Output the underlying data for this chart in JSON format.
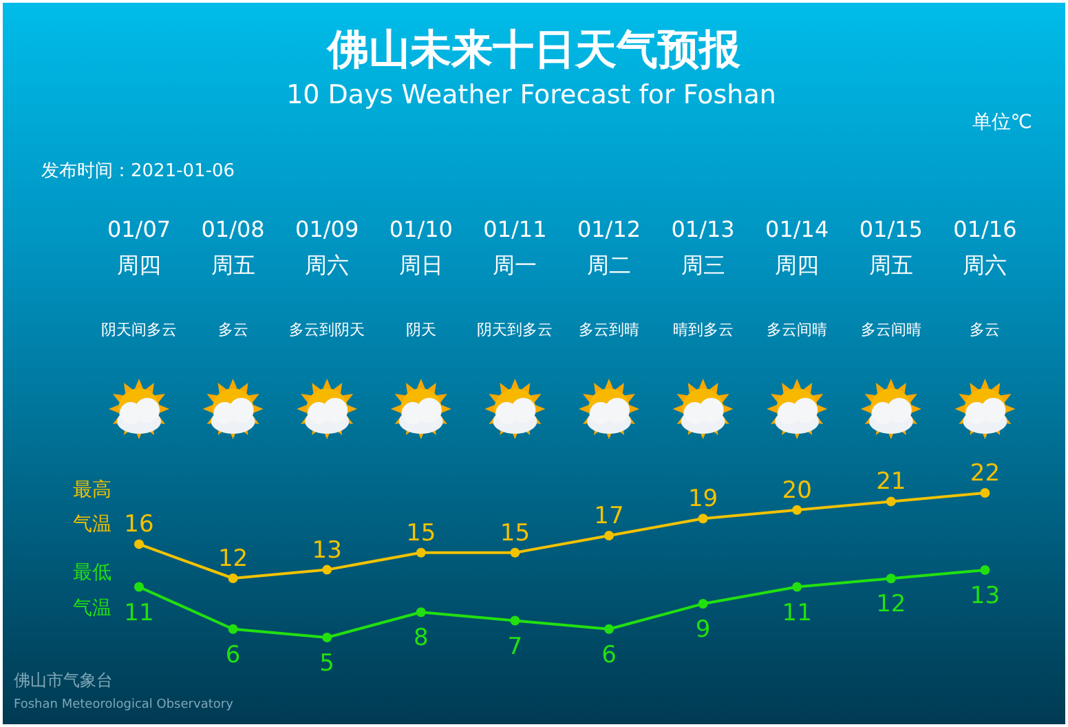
{
  "chart_data": {
    "type": "line",
    "title": "佛山未来十日天气预报",
    "subtitle": "10 Days Weather Forecast for Foshan",
    "categories": [
      "01/07周四阴天间多云",
      "01/08周五多云",
      "01/09周六多云到阴天",
      "01/10周日阴天",
      "01/11周一阴天到多云",
      "01/12周二多云到晴",
      "01/13周三晴到多云",
      "01/14周四多云间晴",
      "01/15周五多云间晴",
      "01/16周六多云"
    ],
    "series": [
      {
        "name": "最高气温",
        "color": "#f2c200",
        "values": [
          16,
          12,
          13,
          15,
          15,
          17,
          19,
          20,
          21,
          22
        ]
      },
      {
        "name": "最低气温",
        "color": "#22e010",
        "values": [
          11,
          6,
          5,
          8,
          7,
          6,
          9,
          11,
          12,
          13
        ]
      }
    ],
    "data_labels": true,
    "marker": "circle",
    "line_style": "solid",
    "annotations": [
      "单位℃",
      "发布时间：2021-01-06",
      "佛山市气象台",
      "Foshan Meteorological Observatory"
    ]
  }
}
